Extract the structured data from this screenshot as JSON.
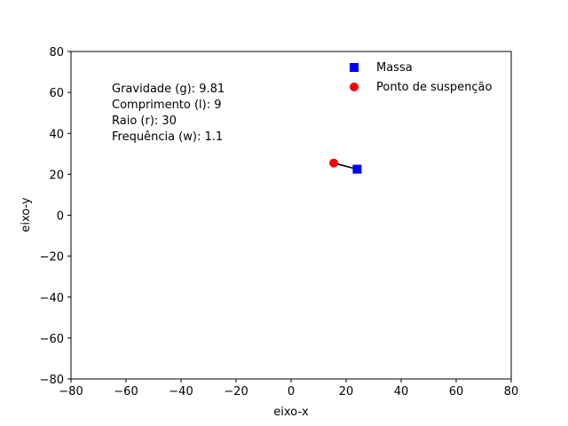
{
  "chart_data": {
    "type": "scatter",
    "title": "",
    "xlabel": "eixo-x",
    "ylabel": "eixo-y",
    "xlim": [
      -80,
      80
    ],
    "ylim": [
      -80,
      80
    ],
    "xticks": [
      "−80",
      "−60",
      "−40",
      "−20",
      "0",
      "20",
      "40",
      "60",
      "80"
    ],
    "yticks": [
      "−80",
      "−60",
      "−40",
      "−20",
      "0",
      "20",
      "40",
      "60",
      "80"
    ],
    "grid": false,
    "legend_position": "top-right",
    "series": [
      {
        "name": "Massa",
        "marker": "square",
        "color": "#0000ff",
        "points": [
          [
            24,
            22.5
          ]
        ]
      },
      {
        "name": "Ponto de suspenção",
        "marker": "circle",
        "color": "#ff0000",
        "points": [
          [
            15.5,
            25.5
          ]
        ]
      }
    ],
    "connector": {
      "from": [
        15.5,
        25.5
      ],
      "to": [
        24,
        22.5
      ],
      "color": "#000000"
    },
    "annotations": [
      "Gravidade (g): 9.81",
      "Comprimento (l): 9",
      "Raio (r): 30",
      "Frequência (w): 1.1"
    ]
  }
}
